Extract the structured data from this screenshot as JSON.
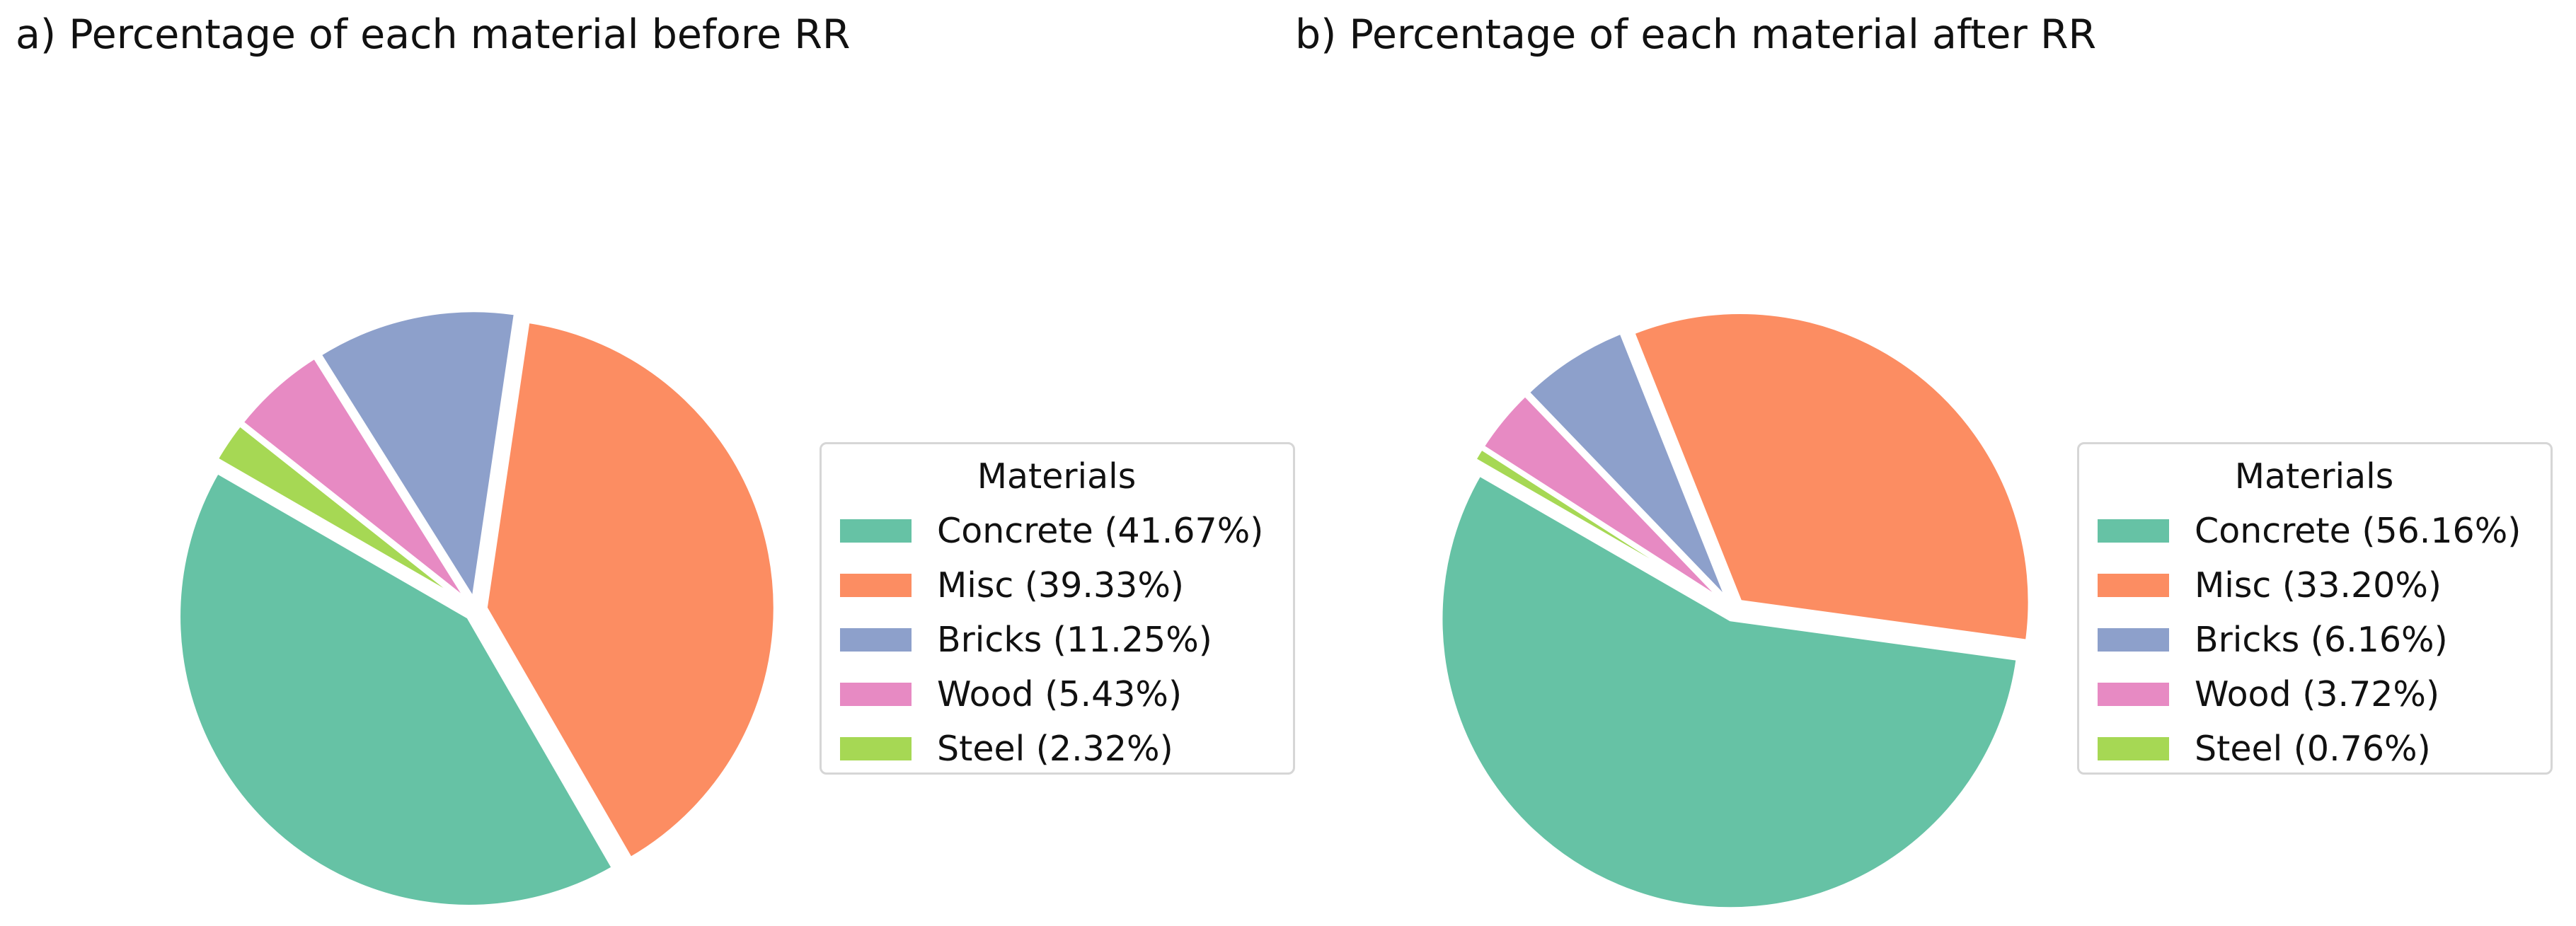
{
  "colors": [
    "#66c2a5",
    "#fc8d62",
    "#8da0cb",
    "#e78ac3",
    "#a6d854"
  ],
  "chart_data": [
    {
      "type": "pie",
      "title": "a) Percentage of each material before RR",
      "legend_title": "Materials",
      "legend_position": "right",
      "slices": [
        {
          "label": "Concrete (41.67%)",
          "value": 41.67
        },
        {
          "label": "Misc (39.33%)",
          "value": 39.33
        },
        {
          "label": "Bricks (11.25%)",
          "value": 11.25
        },
        {
          "label": "Wood (5.43%)",
          "value": 5.43
        },
        {
          "label": "Steel (2.32%)",
          "value": 2.32
        }
      ]
    },
    {
      "type": "pie",
      "title": "b) Percentage of each material after RR",
      "legend_title": "Materials",
      "legend_position": "right",
      "slices": [
        {
          "label": "Concrete (56.16%)",
          "value": 56.16
        },
        {
          "label": "Misc (33.20%)",
          "value": 33.2
        },
        {
          "label": "Bricks (6.16%)",
          "value": 6.16
        },
        {
          "label": "Wood (3.72%)",
          "value": 3.72
        },
        {
          "label": "Steel (0.76%)",
          "value": 0.76
        }
      ]
    }
  ]
}
